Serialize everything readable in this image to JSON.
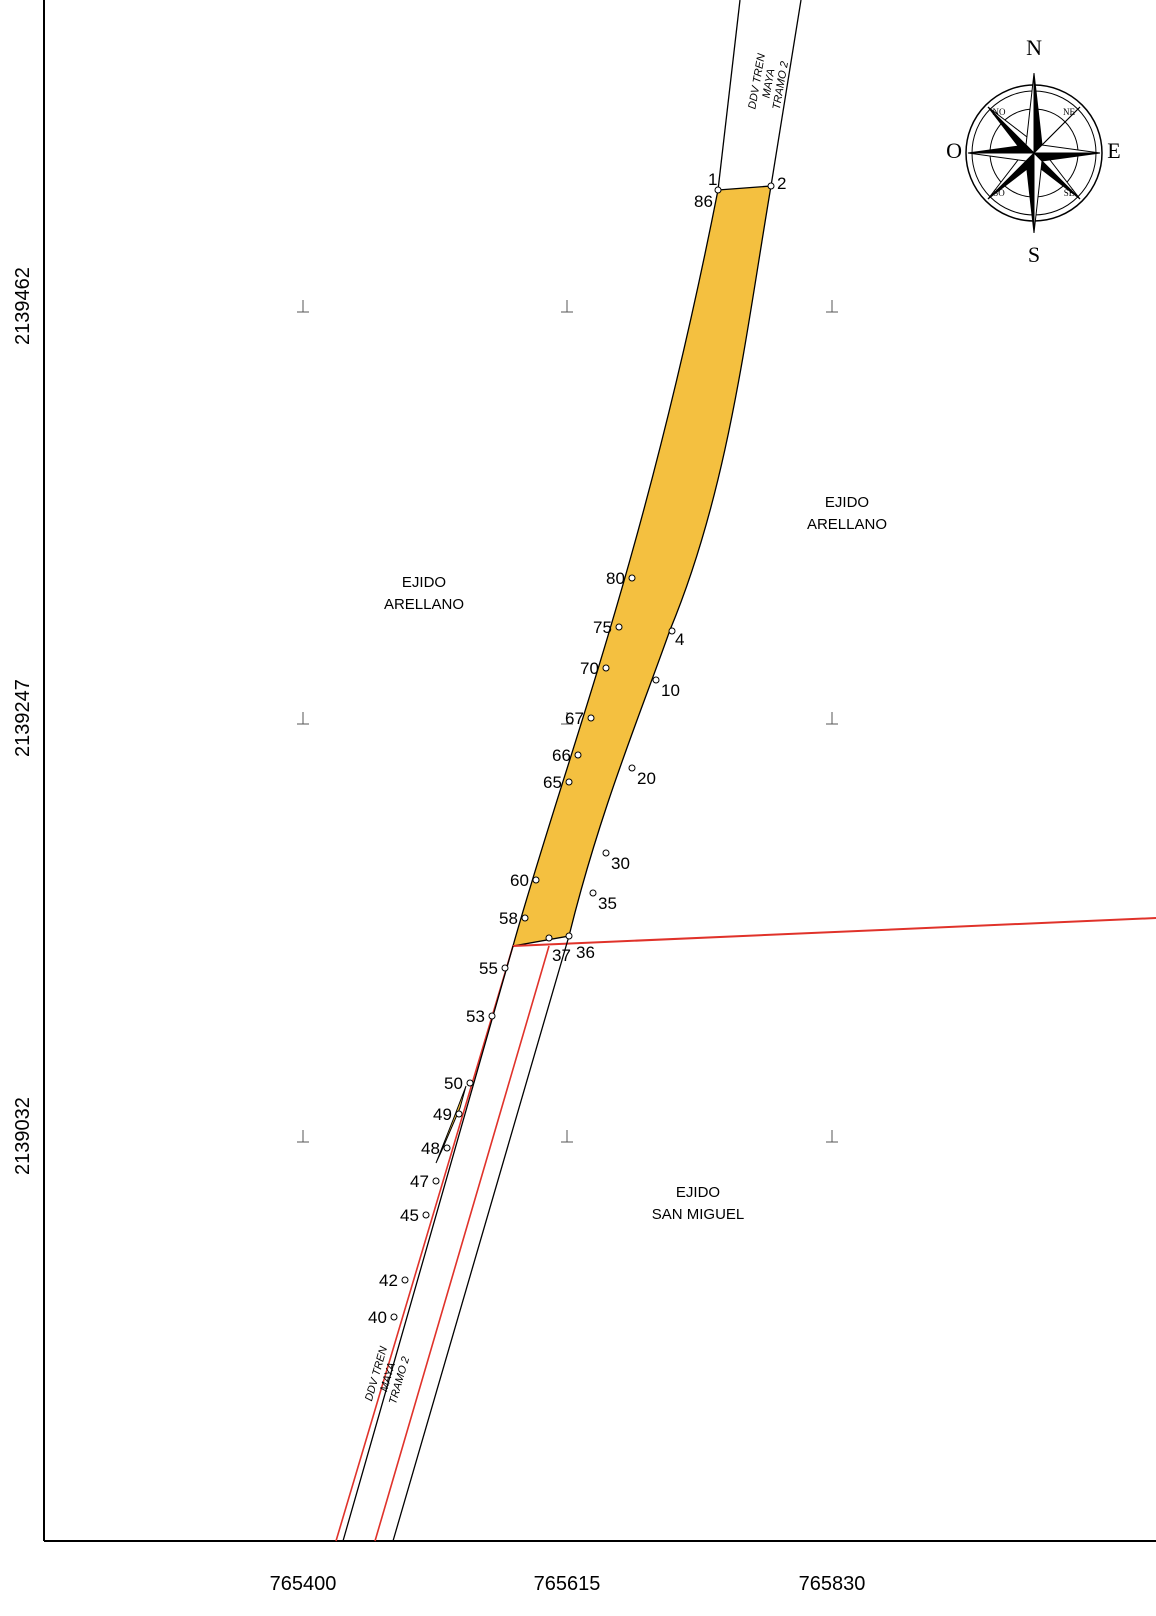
{
  "axes": {
    "easting_labels": [
      "765400",
      "765615",
      "765830"
    ],
    "northing_labels": [
      "2139462",
      "2139247",
      "2139032"
    ]
  },
  "compass": {
    "north": "N",
    "south": "S",
    "east": "E",
    "west": "O",
    "northeast": "NE",
    "northwest": "NO",
    "southeast": "SE",
    "southwest": "SO"
  },
  "areas": {
    "arellano_west": [
      "EJIDO",
      "ARELLANO"
    ],
    "arellano_east": [
      "EJIDO",
      "ARELLANO"
    ],
    "san_miguel": [
      "EJIDO",
      "SAN MIGUEL"
    ]
  },
  "corridor_labels": {
    "top": [
      "DDV TREN",
      "MAYA",
      "TRAMO 2"
    ],
    "bottom": [
      "DDV TREN",
      "MAYA",
      "TRAMO 2"
    ]
  },
  "vertices": [
    "1",
    "86",
    "2",
    "80",
    "75",
    "70",
    "67",
    "66",
    "65",
    "60",
    "58",
    "55",
    "53",
    "50",
    "49",
    "48",
    "47",
    "45",
    "42",
    "40",
    "4",
    "10",
    "20",
    "30",
    "35",
    "36",
    "37"
  ],
  "colors": {
    "parcel_fill": "#f4c040",
    "boundary_red": "#e0322a",
    "line_black": "#000000"
  }
}
